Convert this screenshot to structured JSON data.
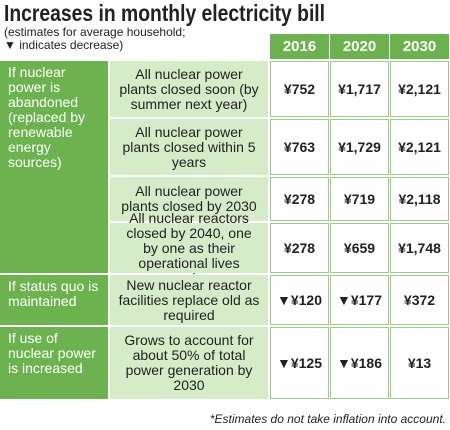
{
  "title": "Increases in monthly electricity bill",
  "subtitle": [
    "(estimates for average household;",
    "▼ indicates decrease)"
  ],
  "table": {
    "columns": [
      "2016",
      "2020",
      "2030"
    ],
    "groups": [
      {
        "label": "If nuclear power is abandoned (replaced by renewable energy sources)",
        "rows": [
          {
            "scenario": "All nuclear power plants closed soon (by summer next year)",
            "values": [
              "¥752",
              "¥1,717",
              "¥2,121"
            ]
          },
          {
            "scenario": "All nuclear power plants closed within 5 years",
            "values": [
              "¥763",
              "¥1,729",
              "¥2,121"
            ]
          },
          {
            "scenario": "All nuclear power plants closed by 2030",
            "values": [
              "¥278",
              "¥719",
              "¥2,118"
            ]
          },
          {
            "scenario": "All nuclear reactors closed by 2040, one by one as their operational lives expire",
            "values": [
              "¥278",
              "¥659",
              "¥1,748"
            ]
          }
        ]
      },
      {
        "label": "If status quo is maintained",
        "rows": [
          {
            "scenario": "New nuclear reactor facilities replace old as required",
            "values": [
              "▼¥120",
              "▼¥177",
              "¥372"
            ]
          }
        ]
      },
      {
        "label": "If use of nuclear power is increased",
        "rows": [
          {
            "scenario": "Grows to account for about 50% of total power generation by 2030",
            "values": [
              "▼¥125",
              "▼¥186",
              "¥13"
            ]
          }
        ]
      }
    ]
  },
  "footnote": "*Estimates do not take inflation into account."
}
